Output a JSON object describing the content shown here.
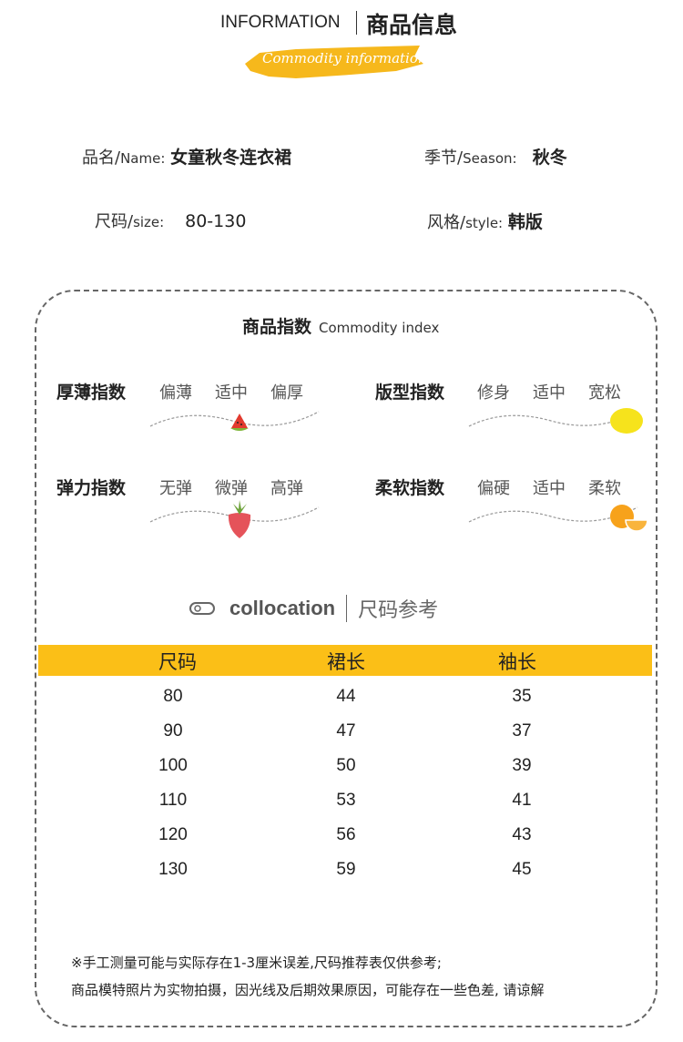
{
  "header": {
    "title_en": "INFORMATION",
    "title_cn": "商品信息",
    "subtitle": "Commodity information",
    "accent": "#fbbf17"
  },
  "info": [
    {
      "key": "品名/",
      "key_en": "Name:",
      "value": "女童秋冬连衣裙"
    },
    {
      "key": "季节/",
      "key_en": "Season:",
      "value": "秋冬"
    },
    {
      "key": "尺码/",
      "key_en": "size:",
      "value": "80-130"
    },
    {
      "key": "风格/",
      "key_en": "style:",
      "value": "韩版"
    }
  ],
  "index": {
    "title_cn": "商品指数",
    "title_en": "Commodity index",
    "items": [
      {
        "label": "厚薄指数",
        "options": [
          "偏薄",
          "适中",
          "偏厚"
        ],
        "level": 0.5,
        "icon": "watermelon-icon"
      },
      {
        "label": "版型指数",
        "options": [
          "修身",
          "适中",
          "宽松"
        ],
        "level": 1.0,
        "icon": "lemon-icon"
      },
      {
        "label": "弹力指数",
        "options": [
          "无弹",
          "微弹",
          "高弹"
        ],
        "level": 0.5,
        "icon": "strawberry-icon"
      },
      {
        "label": "柔软指数",
        "options": [
          "偏硬",
          "适中",
          "柔软"
        ],
        "level": 1.0,
        "icon": "orange-icon"
      }
    ]
  },
  "size_section": {
    "title_en": "collocation",
    "title_cn": "尺码参考"
  },
  "table": {
    "headers": [
      "尺码",
      "裙长",
      "袖长"
    ],
    "rows": [
      [
        "80",
        "44",
        "35"
      ],
      [
        "90",
        "47",
        "37"
      ],
      [
        "100",
        "50",
        "39"
      ],
      [
        "110",
        "53",
        "41"
      ],
      [
        "120",
        "56",
        "43"
      ],
      [
        "130",
        "59",
        "45"
      ]
    ]
  },
  "notes": [
    "※手工测量可能与实际存在1-3厘米误差,尺码推荐表仅供参考;",
    "商品模特照片为实物拍摄，因光线及后期效果原因，可能存在一些色差, 请谅解"
  ]
}
